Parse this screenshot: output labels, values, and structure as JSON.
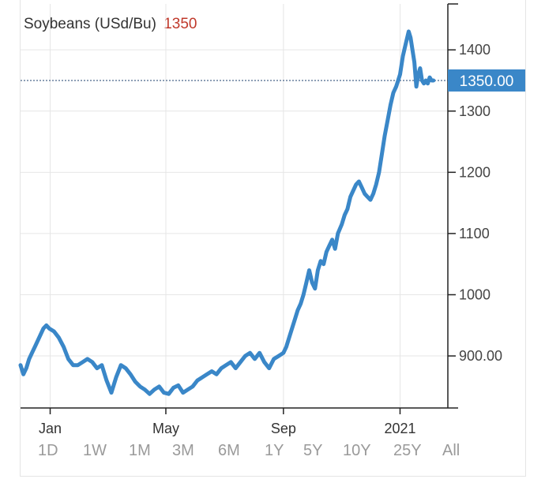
{
  "header": {
    "instrument": "Soybeans (USd/Bu)",
    "last_value": "1350"
  },
  "price_tag": "1350.00",
  "colors": {
    "line": "#3a87c8",
    "tag_bg": "#3a87c8",
    "value_red": "#c0392b",
    "grid": "#e6e6e6"
  },
  "ranges": [
    "1D",
    "1W",
    "1M",
    "3M",
    "6M",
    "1Y",
    "5Y",
    "10Y",
    "25Y",
    "All"
  ],
  "chart_data": {
    "type": "line",
    "title": "Soybeans (USd/Bu)",
    "xlabel": "",
    "ylabel": "",
    "ylim": [
      815,
      1475
    ],
    "y_ticks": [
      "1400",
      "1300",
      "1200",
      "1100",
      "1000",
      "900.00"
    ],
    "y_tick_values": [
      1400,
      1300,
      1200,
      1100,
      1000,
      900
    ],
    "x_ticks": [
      "Jan",
      "May",
      "Sep",
      "2021"
    ],
    "x_tick_dates": [
      "2020-01-01",
      "2020-05-01",
      "2020-09-01",
      "2021-01-01"
    ],
    "reference_line": 1350,
    "legend": "none",
    "grid": true,
    "series": [
      {
        "x": [
          "2019-12-01",
          "2019-12-04",
          "2019-12-07",
          "2019-12-10",
          "2019-12-13",
          "2019-12-16",
          "2019-12-19",
          "2019-12-22",
          "2019-12-25",
          "2019-12-28",
          "2019-12-31",
          "2020-01-05",
          "2020-01-10",
          "2020-01-15",
          "2020-01-20",
          "2020-01-25",
          "2020-01-30",
          "2020-02-04",
          "2020-02-09",
          "2020-02-14",
          "2020-02-19",
          "2020-02-24",
          "2020-02-29",
          "2020-03-05",
          "2020-03-10",
          "2020-03-15",
          "2020-03-20",
          "2020-03-25",
          "2020-03-30",
          "2020-04-04",
          "2020-04-09",
          "2020-04-14",
          "2020-04-19",
          "2020-04-24",
          "2020-04-29",
          "2020-05-04",
          "2020-05-09",
          "2020-05-14",
          "2020-05-19",
          "2020-05-24",
          "2020-05-29",
          "2020-06-03",
          "2020-06-08",
          "2020-06-13",
          "2020-06-18",
          "2020-06-23",
          "2020-06-28",
          "2020-07-03",
          "2020-07-08",
          "2020-07-13",
          "2020-07-18",
          "2020-07-23",
          "2020-07-28",
          "2020-08-02",
          "2020-08-07",
          "2020-08-12",
          "2020-08-17",
          "2020-08-22",
          "2020-08-27",
          "2020-09-01",
          "2020-09-04",
          "2020-09-07",
          "2020-09-10",
          "2020-09-13",
          "2020-09-16",
          "2020-09-19",
          "2020-09-22",
          "2020-09-25",
          "2020-09-28",
          "2020-10-01",
          "2020-10-04",
          "2020-10-07",
          "2020-10-10",
          "2020-10-13",
          "2020-10-16",
          "2020-10-19",
          "2020-10-22",
          "2020-10-25",
          "2020-10-28",
          "2020-11-01",
          "2020-11-04",
          "2020-11-07",
          "2020-11-10",
          "2020-11-13",
          "2020-11-16",
          "2020-11-19",
          "2020-11-22",
          "2020-11-25",
          "2020-11-28",
          "2020-12-01",
          "2020-12-04",
          "2020-12-07",
          "2020-12-10",
          "2020-12-13",
          "2020-12-16",
          "2020-12-19",
          "2020-12-22",
          "2020-12-25",
          "2020-12-28",
          "2021-01-01",
          "2021-01-04",
          "2021-01-07",
          "2021-01-10",
          "2021-01-12",
          "2021-01-14",
          "2021-01-16",
          "2021-01-18",
          "2021-01-20",
          "2021-01-22",
          "2021-01-24",
          "2021-01-26",
          "2021-01-28",
          "2021-01-30",
          "2021-02-01",
          "2021-02-03",
          "2021-02-05"
        ],
        "values": [
          885,
          870,
          880,
          895,
          905,
          915,
          925,
          935,
          945,
          950,
          945,
          940,
          930,
          915,
          895,
          885,
          885,
          890,
          895,
          890,
          880,
          885,
          860,
          840,
          865,
          885,
          880,
          870,
          858,
          850,
          845,
          838,
          845,
          850,
          840,
          838,
          848,
          852,
          840,
          845,
          850,
          860,
          865,
          870,
          875,
          870,
          880,
          885,
          890,
          880,
          890,
          900,
          905,
          895,
          905,
          890,
          880,
          895,
          900,
          905,
          915,
          930,
          945,
          960,
          975,
          985,
          1000,
          1020,
          1040,
          1020,
          1010,
          1040,
          1055,
          1050,
          1070,
          1080,
          1090,
          1075,
          1100,
          1115,
          1130,
          1140,
          1160,
          1170,
          1180,
          1185,
          1175,
          1165,
          1160,
          1155,
          1165,
          1180,
          1200,
          1230,
          1260,
          1285,
          1310,
          1330,
          1340,
          1360,
          1390,
          1410,
          1430,
          1420,
          1400,
          1380,
          1340,
          1360,
          1370,
          1350,
          1345,
          1350,
          1345,
          1355,
          1350,
          1350
        ]
      }
    ]
  }
}
